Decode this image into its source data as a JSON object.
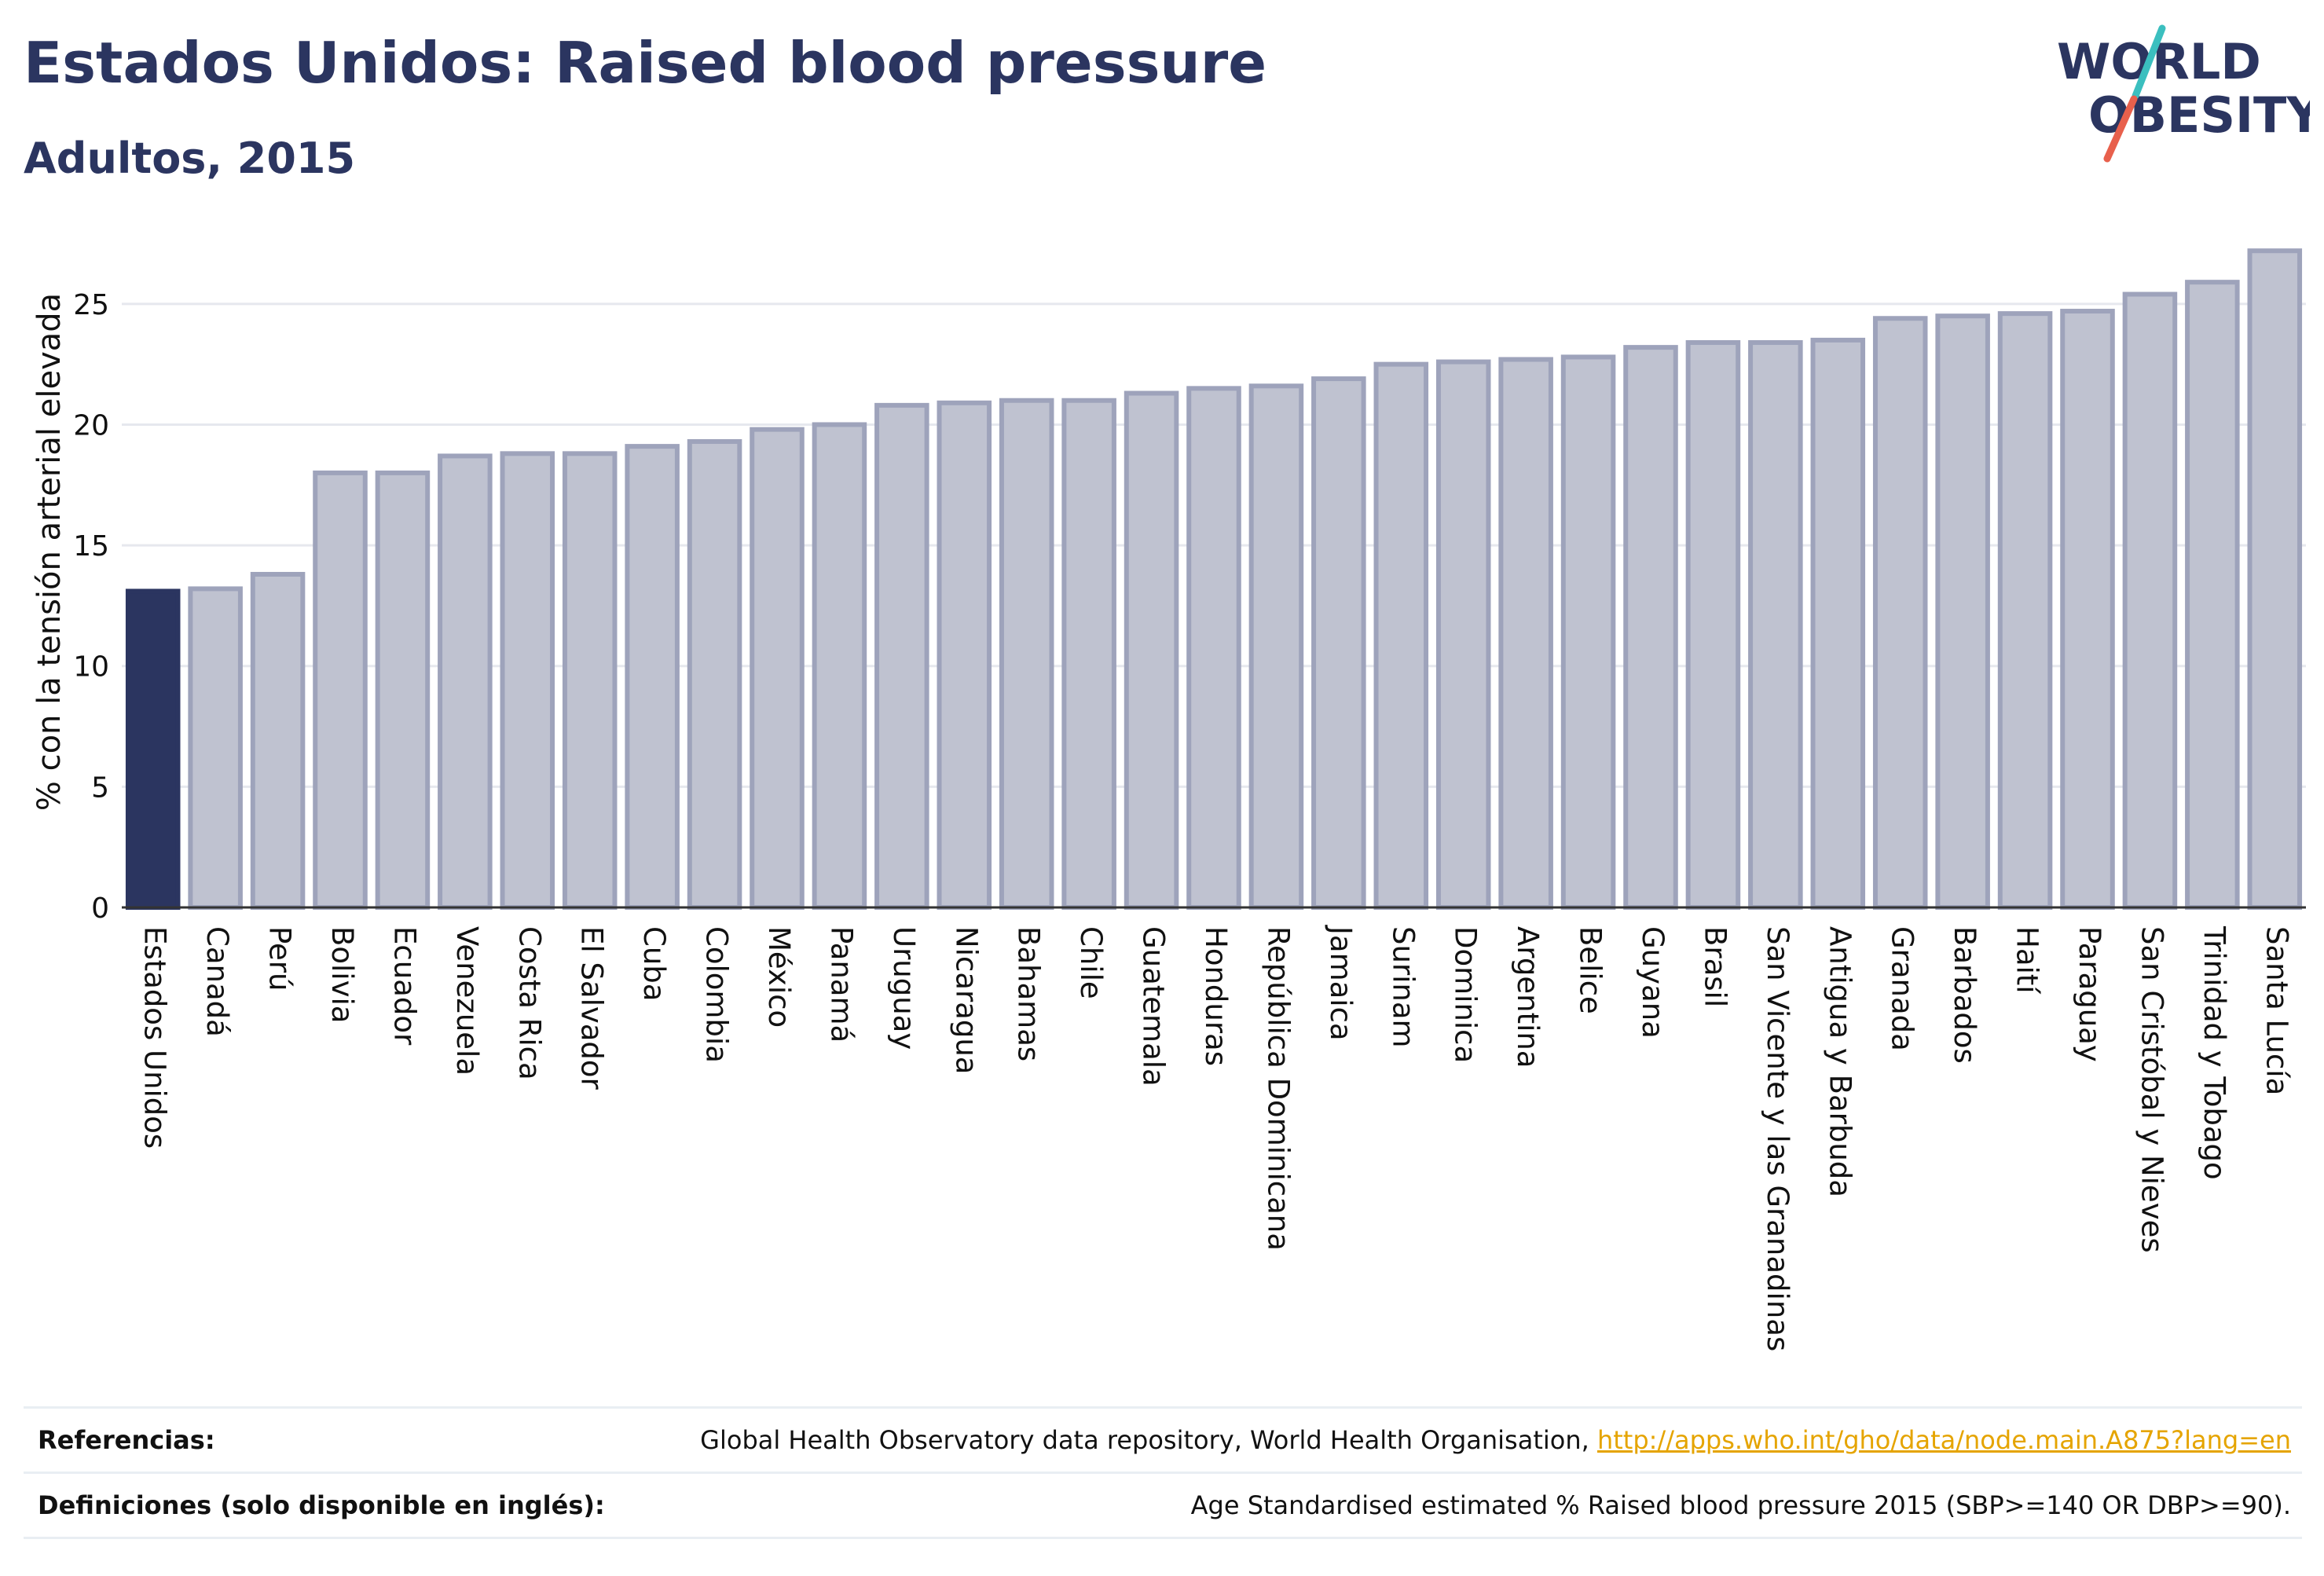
{
  "header": {
    "title": "Estados Unidos: Raised blood pressure",
    "subtitle": "Adultos, 2015"
  },
  "logo": {
    "line1": "WORLD",
    "line2": "OBESITY",
    "colors": {
      "text": "#2b3560",
      "slash_top": "#3bbfbf",
      "slash_bottom": "#e8604c"
    }
  },
  "colors": {
    "highlight_bar": "#2b3560",
    "bar_fill": "#bfc2d0",
    "bar_border": "#9ea3bb",
    "grid": "#e6e8ee",
    "axis": "#333333",
    "link": "#e5a400"
  },
  "chart_data": {
    "type": "bar",
    "title": "",
    "xlabel": "",
    "ylabel": "% con la tensión arterial elevada",
    "ylim": [
      0,
      27.5
    ],
    "yticks": [
      0,
      5,
      10,
      15,
      20,
      25
    ],
    "grid": true,
    "legend": "none",
    "highlight": "Estados Unidos",
    "categories": [
      "Estados Unidos",
      "Canadá",
      "Perú",
      "Bolivia",
      "Ecuador",
      "Venezuela",
      "Costa Rica",
      "El Salvador",
      "Cuba",
      "Colombia",
      "México",
      "Panamá",
      "Uruguay",
      "Nicaragua",
      "Bahamas",
      "Chile",
      "Guatemala",
      "Honduras",
      "República Dominicana",
      "Jamaica",
      "Surinam",
      "Dominica",
      "Argentina",
      "Belice",
      "Guyana",
      "Brasil",
      "San Vicente y las Granadinas",
      "Antigua y Barbuda",
      "Granada",
      "Barbados",
      "Haití",
      "Paraguay",
      "San Cristóbal y Nieves",
      "Trinidad y Tobago",
      "Santa Lucía"
    ],
    "values": [
      13.1,
      13.2,
      13.8,
      18.0,
      18.0,
      18.7,
      18.8,
      18.8,
      19.1,
      19.3,
      19.8,
      20.0,
      20.8,
      20.9,
      21.0,
      21.0,
      21.3,
      21.5,
      21.6,
      21.9,
      22.5,
      22.6,
      22.7,
      22.8,
      23.2,
      23.4,
      23.4,
      23.5,
      24.4,
      24.5,
      24.6,
      24.7,
      25.4,
      25.9,
      27.2
    ]
  },
  "footer": {
    "references_label": "Referencias:",
    "references_text": "Global Health Observatory data repository, World Health Organisation, ",
    "references_link": "http://apps.who.int/gho/data/node.main.A875?lang=en",
    "definitions_label": "Definiciones (solo disponible en inglés):",
    "definitions_text": "Age Standardised estimated % Raised blood pressure 2015 (SBP>=140 OR DBP>=90)."
  }
}
